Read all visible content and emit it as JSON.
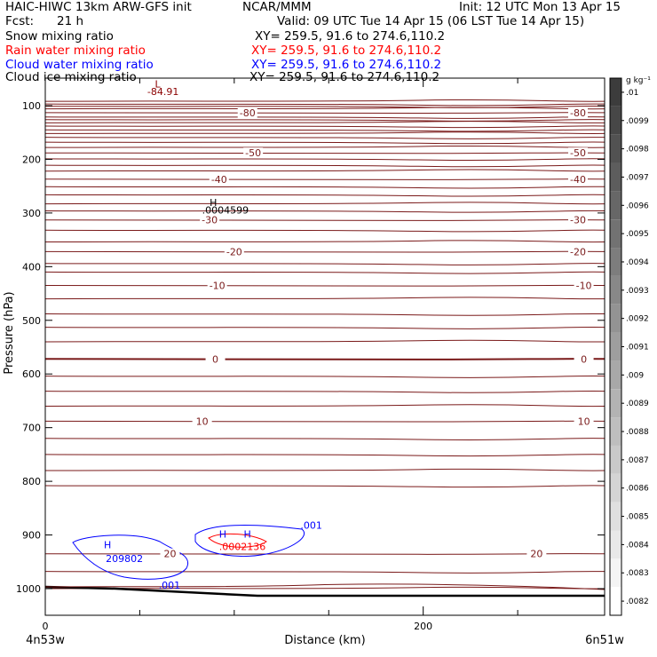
{
  "header": {
    "model": "HAIC-HIWC 13km ARW-GFS init",
    "org": "NCAR/MMM",
    "init": "Init: 12 UTC Mon 13 Apr 15",
    "fcst_label": "Fcst:",
    "fcst_value": "21 h",
    "valid": "Valid: 09 UTC Tue 14 Apr 15 (06 LST Tue 14 Apr 15)"
  },
  "fields": [
    {
      "name": "Snow mixing ratio",
      "xy": "XY= 259.5, 91.6 to 274.6,110.2",
      "color": "#000000"
    },
    {
      "name": "Rain water mixing ratio",
      "xy": "XY= 259.5, 91.6 to 274.6,110.2",
      "color": "#ff0000"
    },
    {
      "name": "Cloud water mixing ratio",
      "xy": "XY= 259.5, 91.6 to 274.6,110.2",
      "color": "#0000ff"
    },
    {
      "name": "Cloud ice mixing ratio",
      "xy": "XY= 259.5, 91.6 to 274.6,110.2",
      "color": "#000000"
    }
  ],
  "chart_data": {
    "type": "contour",
    "ylabel": "Pressure (hPa)",
    "xlabel": "Distance (km)",
    "x_left_label": "4n53w",
    "x_right_label": "6n51w",
    "xlim": [
      0,
      296
    ],
    "ylim": [
      1050,
      60
    ],
    "x_ticks": [
      0,
      200
    ],
    "y_ticks": [
      100,
      200,
      300,
      400,
      500,
      600,
      700,
      800,
      900,
      1000
    ],
    "colorbar_unit": "g kg⁻¹",
    "colorbar_labels": [
      ".01",
      ".0099",
      ".0098",
      ".0097",
      ".0096",
      ".0095",
      ".0094",
      ".0093",
      ".0092",
      ".0091",
      ".009",
      ".0089",
      ".0088",
      ".0087",
      ".0086",
      ".0085",
      ".0084",
      ".0083",
      ".0082"
    ],
    "temperature_contours": [
      {
        "label": "-80",
        "p": 113,
        "label_x": [
          107,
          296
        ]
      },
      {
        "label": "-50",
        "p": 188,
        "label_x": [
          110,
          296
        ]
      },
      {
        "label": "-40",
        "p": 237,
        "label_x": [
          92,
          296
        ]
      },
      {
        "label": "-30",
        "p": 313,
        "label_x": [
          87,
          296
        ]
      },
      {
        "label": "-20",
        "p": 372,
        "label_x": [
          100,
          296
        ]
      },
      {
        "label": "-10",
        "p": 435,
        "label_x": [
          91,
          285
        ]
      },
      {
        "label": "0",
        "p": 572,
        "label_x": [
          90,
          285
        ]
      },
      {
        "label": "10",
        "p": 688,
        "label_x": [
          83,
          285
        ]
      },
      {
        "label": "20",
        "p": 935,
        "label_x": [
          66,
          260
        ]
      }
    ],
    "labels": [
      {
        "text": "L",
        "x": 58,
        "p": 66,
        "color": "#8b0000"
      },
      {
        "text": "-84.91",
        "x": 54,
        "p": 80,
        "color": "#8b0000"
      },
      {
        "text": "H",
        "x": 87,
        "p": 287,
        "color": "#000000"
      },
      {
        "text": ".0004599",
        "x": 83,
        "p": 301,
        "color": "#000000"
      },
      {
        "text": "H",
        "x": 31,
        "p": 925,
        "color": "#0000ff"
      },
      {
        "text": "209802",
        "x": 32,
        "p": 950,
        "color": "#0000ff"
      },
      {
        "text": ".001",
        "x": 60,
        "p": 1000,
        "color": "#0000ff"
      },
      {
        "text": "H",
        "x": 92,
        "p": 905,
        "color": "#0000ff"
      },
      {
        "text": "H",
        "x": 105,
        "p": 905,
        "color": "#0000ff"
      },
      {
        "text": ".0002136",
        "x": 92,
        "p": 928,
        "color": "#ff0000"
      },
      {
        "text": ".001",
        "x": 135,
        "p": 888,
        "color": "#0000ff"
      }
    ]
  }
}
